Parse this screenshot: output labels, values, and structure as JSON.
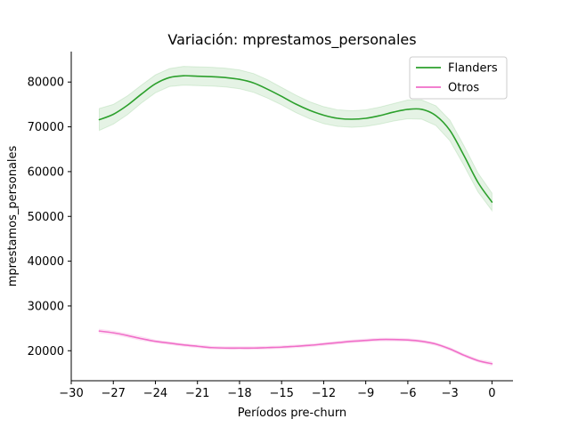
{
  "chart_data": {
    "type": "line",
    "title": "Variación: mprestamos_personales",
    "xlabel": "Períodos pre-churn",
    "ylabel": "mprestamos_personales",
    "xlim": [
      -30,
      1.5
    ],
    "ylim": [
      13300,
      86800
    ],
    "xticks": [
      -30,
      -27,
      -24,
      -21,
      -18,
      -15,
      -12,
      -9,
      -6,
      -3,
      0
    ],
    "xtick_labels": [
      "−30",
      "−27",
      "−24",
      "−21",
      "−18",
      "−15",
      "−12",
      "−9",
      "−6",
      "−3",
      "0"
    ],
    "yticks": [
      20000,
      30000,
      40000,
      50000,
      60000,
      70000,
      80000
    ],
    "ytick_labels": [
      "20000",
      "30000",
      "40000",
      "50000",
      "60000",
      "70000",
      "80000"
    ],
    "legend_position": "top-right",
    "grid": false,
    "x": [
      -28,
      -27,
      -26,
      -25,
      -24,
      -23,
      -22,
      -21,
      -20,
      -19,
      -18,
      -17,
      -16,
      -15,
      -14,
      -13,
      -12,
      -11,
      -10,
      -9,
      -8,
      -7,
      -6,
      -5,
      -4,
      -3,
      -2,
      -1,
      0
    ],
    "series": [
      {
        "name": "Flanders",
        "color": "#2ca02c",
        "band_color": "#2ca02c",
        "values": [
          71600,
          72800,
          74800,
          77300,
          79600,
          81000,
          81400,
          81300,
          81200,
          81000,
          80600,
          79800,
          78400,
          76800,
          75100,
          73700,
          72600,
          71900,
          71700,
          71900,
          72500,
          73300,
          73900,
          73900,
          72500,
          69200,
          63600,
          57600,
          53200
        ],
        "lower": [
          69200,
          70600,
          72700,
          75300,
          77600,
          79000,
          79300,
          79200,
          79100,
          78900,
          78500,
          77700,
          76400,
          74900,
          73200,
          71800,
          70700,
          70100,
          69900,
          70100,
          70600,
          71300,
          71800,
          71700,
          70300,
          66900,
          61400,
          55500,
          51300
        ],
        "upper": [
          74100,
          75000,
          76900,
          79300,
          81600,
          83000,
          83500,
          83400,
          83300,
          83100,
          82700,
          81900,
          80500,
          78800,
          77100,
          75600,
          74500,
          73800,
          73600,
          73800,
          74400,
          75200,
          76000,
          76000,
          74700,
          71500,
          65800,
          59700,
          55200
        ]
      },
      {
        "name": "Otros",
        "color": "#f06ec8",
        "band_color": "#f06ec8",
        "values": [
          24400,
          24000,
          23400,
          22700,
          22100,
          21700,
          21300,
          21000,
          20700,
          20600,
          20600,
          20600,
          20700,
          20800,
          21000,
          21200,
          21500,
          21800,
          22100,
          22300,
          22500,
          22500,
          22400,
          22100,
          21500,
          20400,
          19000,
          17800,
          17100
        ],
        "lower": [
          24000,
          23600,
          23000,
          22300,
          21800,
          21400,
          21000,
          20700,
          20400,
          20300,
          20300,
          20300,
          20400,
          20500,
          20700,
          20900,
          21200,
          21500,
          21800,
          22000,
          22200,
          22200,
          22100,
          21800,
          21200,
          20100,
          18700,
          17500,
          16700
        ],
        "upper": [
          24800,
          24400,
          23800,
          23100,
          22400,
          22000,
          21600,
          21300,
          21000,
          20900,
          20900,
          20900,
          21000,
          21100,
          21300,
          21500,
          21800,
          22100,
          22400,
          22600,
          22800,
          22800,
          22700,
          22400,
          21800,
          20700,
          19300,
          18100,
          17500
        ]
      }
    ]
  }
}
